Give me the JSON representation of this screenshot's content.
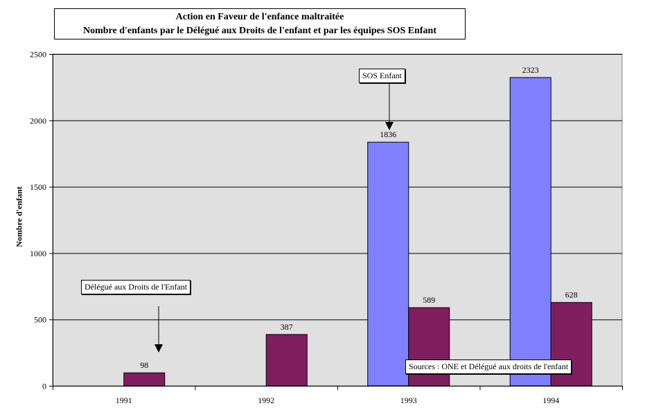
{
  "chart_data": {
    "type": "bar",
    "title": [
      "Action en Faveur de l'enfance maltraitée",
      "Nombre d'enfants  par le  Délégué aux Droits de l'enfant  et par les équipes  SOS Enfant"
    ],
    "ylabel": "Nombre d'enfant",
    "xlabel": "",
    "categories": [
      "1991",
      "1992",
      "1993",
      "1994"
    ],
    "yticks": [
      "0",
      "500",
      "1000",
      "1500",
      "2000",
      "2500"
    ],
    "ylim": [
      0,
      2500
    ],
    "grid": true,
    "series": [
      {
        "name": "SOS Enfant",
        "values": [
          null,
          null,
          1836,
          2323
        ],
        "color": "#8080ff"
      },
      {
        "name": "Délégué aux Droits de l'Enfant",
        "values": [
          98,
          387,
          589,
          628
        ],
        "color": "#7f1f5f"
      }
    ],
    "annotations": {
      "sos": "SOS Enfant",
      "delegue": "Délégué aux Droits de l'Enfant",
      "sources": "Sources : ONE et Délégué aux droits de l'enfant"
    },
    "plot_background": "#e0e0e0"
  }
}
